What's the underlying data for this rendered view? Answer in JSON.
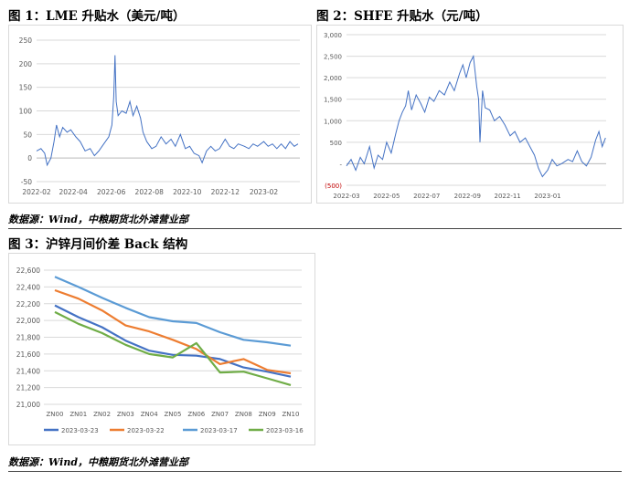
{
  "figures": {
    "fig1_title": "图 1：LME 升贴水（美元/吨）",
    "fig2_title": "图 2：SHFE 升贴水（元/吨）",
    "fig3_title": "图 3：沪锌月间价差 Back 结构",
    "source_top": "数据源：Wind，中粮期货北外滩营业部",
    "source_bottom": "数据源：Wind，中粮期货北外滩营业部"
  },
  "chart_data": [
    {
      "id": "lme",
      "type": "line",
      "title": "LME 升贴水（美元/吨）",
      "color": "#4472c4",
      "ylim": [
        -50,
        250
      ],
      "yticks": [
        "250",
        "200",
        "150",
        "100",
        "50",
        "0",
        "-50"
      ],
      "ytick_values": [
        250,
        200,
        150,
        100,
        50,
        0,
        -50
      ],
      "xticks": [
        "2022-02",
        "2022-04",
        "2022-06",
        "2022-08",
        "2022-10",
        "2022-12",
        "2023-02"
      ],
      "x_range": [
        "2022-02-01",
        "2023-03-31"
      ],
      "points": [
        [
          "2022-02-01",
          15
        ],
        [
          "2022-02-08",
          20
        ],
        [
          "2022-02-14",
          10
        ],
        [
          "2022-02-18",
          -15
        ],
        [
          "2022-02-24",
          0
        ],
        [
          "2022-03-01",
          35
        ],
        [
          "2022-03-05",
          70
        ],
        [
          "2022-03-10",
          45
        ],
        [
          "2022-03-15",
          65
        ],
        [
          "2022-03-22",
          55
        ],
        [
          "2022-03-28",
          60
        ],
        [
          "2022-04-05",
          45
        ],
        [
          "2022-04-12",
          35
        ],
        [
          "2022-04-20",
          15
        ],
        [
          "2022-04-28",
          20
        ],
        [
          "2022-05-05",
          5
        ],
        [
          "2022-05-12",
          15
        ],
        [
          "2022-05-20",
          30
        ],
        [
          "2022-05-28",
          45
        ],
        [
          "2022-06-02",
          70
        ],
        [
          "2022-06-05",
          130
        ],
        [
          "2022-06-07",
          218
        ],
        [
          "2022-06-09",
          120
        ],
        [
          "2022-06-12",
          90
        ],
        [
          "2022-06-18",
          100
        ],
        [
          "2022-06-25",
          95
        ],
        [
          "2022-07-01",
          120
        ],
        [
          "2022-07-06",
          90
        ],
        [
          "2022-07-12",
          110
        ],
        [
          "2022-07-18",
          85
        ],
        [
          "2022-07-22",
          55
        ],
        [
          "2022-07-28",
          35
        ],
        [
          "2022-08-05",
          20
        ],
        [
          "2022-08-12",
          25
        ],
        [
          "2022-08-20",
          45
        ],
        [
          "2022-08-28",
          30
        ],
        [
          "2022-09-05",
          40
        ],
        [
          "2022-09-12",
          25
        ],
        [
          "2022-09-20",
          50
        ],
        [
          "2022-09-28",
          20
        ],
        [
          "2022-10-05",
          25
        ],
        [
          "2022-10-12",
          10
        ],
        [
          "2022-10-20",
          5
        ],
        [
          "2022-10-25",
          -10
        ],
        [
          "2022-11-01",
          15
        ],
        [
          "2022-11-08",
          25
        ],
        [
          "2022-11-15",
          15
        ],
        [
          "2022-11-22",
          20
        ],
        [
          "2022-12-01",
          40
        ],
        [
          "2022-12-08",
          25
        ],
        [
          "2022-12-15",
          20
        ],
        [
          "2022-12-22",
          30
        ],
        [
          "2023-01-01",
          25
        ],
        [
          "2023-01-08",
          20
        ],
        [
          "2023-01-15",
          30
        ],
        [
          "2023-01-22",
          25
        ],
        [
          "2023-02-01",
          35
        ],
        [
          "2023-02-08",
          25
        ],
        [
          "2023-02-15",
          30
        ],
        [
          "2023-02-22",
          20
        ],
        [
          "2023-03-01",
          30
        ],
        [
          "2023-03-08",
          20
        ],
        [
          "2023-03-15",
          35
        ],
        [
          "2023-03-22",
          25
        ],
        [
          "2023-03-28",
          30
        ]
      ]
    },
    {
      "id": "shfe",
      "type": "line",
      "title": "SHFE 升贴水（元/吨）",
      "color": "#4472c4",
      "ylim": [
        -500,
        3000
      ],
      "yticks": [
        "3,000",
        "2,500",
        "2,000",
        "1,500",
        "1,000",
        "500",
        "-",
        "(500)"
      ],
      "ytick_values": [
        3000,
        2500,
        2000,
        1500,
        1000,
        500,
        0,
        -500
      ],
      "xticks": [
        "2022-03",
        "2022-05",
        "2022-07",
        "2022-09",
        "2022-11",
        "2023-01"
      ],
      "x_range": [
        "2022-03-01",
        "2023-03-31"
      ],
      "points": [
        [
          "2022-03-01",
          -50
        ],
        [
          "2022-03-08",
          100
        ],
        [
          "2022-03-15",
          -150
        ],
        [
          "2022-03-22",
          150
        ],
        [
          "2022-03-28",
          0
        ],
        [
          "2022-04-05",
          400
        ],
        [
          "2022-04-12",
          -100
        ],
        [
          "2022-04-18",
          200
        ],
        [
          "2022-04-25",
          100
        ],
        [
          "2022-05-01",
          500
        ],
        [
          "2022-05-08",
          250
        ],
        [
          "2022-05-15",
          700
        ],
        [
          "2022-05-20",
          1000
        ],
        [
          "2022-05-25",
          1200
        ],
        [
          "2022-05-30",
          1350
        ],
        [
          "2022-06-03",
          1700
        ],
        [
          "2022-06-08",
          1250
        ],
        [
          "2022-06-15",
          1600
        ],
        [
          "2022-06-22",
          1400
        ],
        [
          "2022-06-28",
          1200
        ],
        [
          "2022-07-05",
          1550
        ],
        [
          "2022-07-12",
          1450
        ],
        [
          "2022-07-20",
          1700
        ],
        [
          "2022-07-28",
          1600
        ],
        [
          "2022-08-05",
          1900
        ],
        [
          "2022-08-12",
          1700
        ],
        [
          "2022-08-20",
          2100
        ],
        [
          "2022-08-25",
          2300
        ],
        [
          "2022-08-30",
          2000
        ],
        [
          "2022-09-05",
          2350
        ],
        [
          "2022-09-10",
          2500
        ],
        [
          "2022-09-15",
          1800
        ],
        [
          "2022-09-18",
          1500
        ],
        [
          "2022-09-20",
          500
        ],
        [
          "2022-09-24",
          1700
        ],
        [
          "2022-09-28",
          1300
        ],
        [
          "2022-10-05",
          1250
        ],
        [
          "2022-10-12",
          1000
        ],
        [
          "2022-10-20",
          1100
        ],
        [
          "2022-10-28",
          900
        ],
        [
          "2022-11-05",
          650
        ],
        [
          "2022-11-12",
          750
        ],
        [
          "2022-11-20",
          500
        ],
        [
          "2022-11-28",
          600
        ],
        [
          "2022-12-05",
          400
        ],
        [
          "2022-12-12",
          200
        ],
        [
          "2022-12-18",
          -100
        ],
        [
          "2022-12-24",
          -300
        ],
        [
          "2023-01-01",
          -150
        ],
        [
          "2023-01-08",
          100
        ],
        [
          "2023-01-15",
          -50
        ],
        [
          "2023-01-22",
          0
        ],
        [
          "2023-02-01",
          100
        ],
        [
          "2023-02-08",
          50
        ],
        [
          "2023-02-15",
          300
        ],
        [
          "2023-02-22",
          50
        ],
        [
          "2023-03-01",
          -50
        ],
        [
          "2023-03-08",
          150
        ],
        [
          "2023-03-15",
          550
        ],
        [
          "2023-03-20",
          750
        ],
        [
          "2023-03-25",
          400
        ],
        [
          "2023-03-30",
          600
        ]
      ]
    },
    {
      "id": "spread",
      "type": "line",
      "title": "沪锌月间价差 Back 结构",
      "categories": [
        "ZN00",
        "ZN01",
        "ZN02",
        "ZN03",
        "ZN04",
        "ZN05",
        "ZN06",
        "ZN07",
        "ZN08",
        "ZN09",
        "ZN10"
      ],
      "ylim": [
        21000,
        22600
      ],
      "yticks": [
        "22,600",
        "22,400",
        "22,200",
        "22,000",
        "21,800",
        "21,600",
        "21,400",
        "21,200",
        "21,000"
      ],
      "ytick_values": [
        22600,
        22400,
        22200,
        22000,
        21800,
        21600,
        21400,
        21200,
        21000
      ],
      "legend_position": "bottom",
      "series": [
        {
          "name": "2023-03-23",
          "color": "#4472c4",
          "values": [
            22180,
            22040,
            21920,
            21760,
            21640,
            21590,
            21580,
            21540,
            21440,
            21390,
            21330
          ]
        },
        {
          "name": "2023-03-22",
          "color": "#ed7d31",
          "values": [
            22360,
            22260,
            22120,
            21940,
            21870,
            21770,
            21660,
            21480,
            21540,
            21410,
            21370
          ]
        },
        {
          "name": "2023-03-17",
          "color": "#5b9bd5",
          "values": [
            22520,
            22400,
            22270,
            22150,
            22040,
            21990,
            21970,
            21860,
            21770,
            21740,
            21700
          ]
        },
        {
          "name": "2023-03-16",
          "color": "#70ad47",
          "values": [
            22100,
            21960,
            21850,
            21710,
            21600,
            21560,
            21730,
            21380,
            21390,
            21310,
            21230
          ]
        }
      ]
    }
  ]
}
